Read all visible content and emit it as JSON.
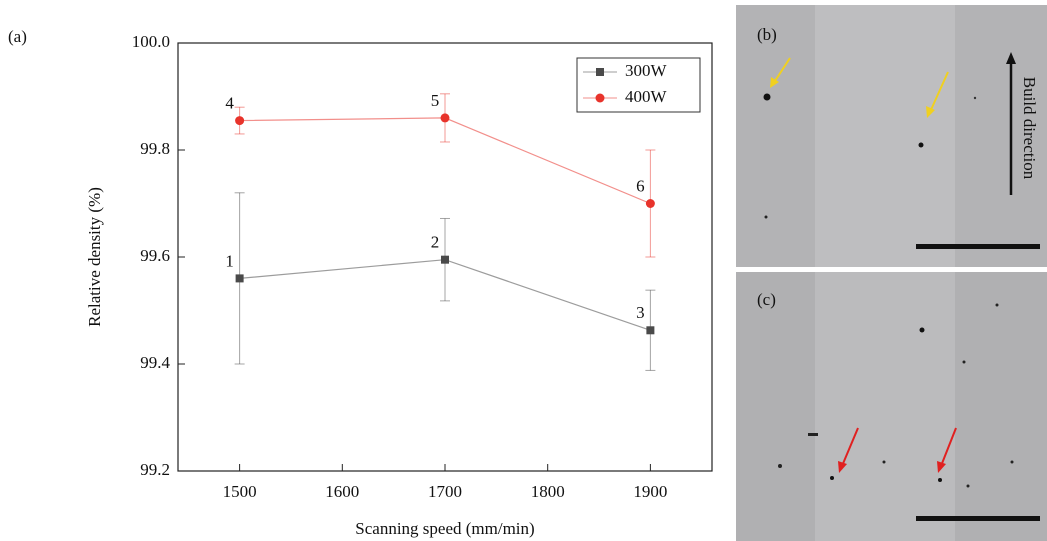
{
  "chart_data": {
    "type": "line",
    "panel_labels": [
      "(a)",
      "(b)",
      "(c)"
    ],
    "xlabel": "Scanning speed (mm/min)",
    "ylabel": "Relative density (%)",
    "annotation": "Build direction",
    "x": [
      1500,
      1700,
      1900
    ],
    "xlim": [
      1440,
      1960
    ],
    "xticks": [
      1500,
      1600,
      1700,
      1800,
      1900
    ],
    "ylim": [
      99.2,
      100
    ],
    "yticks": [
      99.2,
      99.4,
      99.6,
      99.8,
      {
        "value": 100,
        "label": "100.0"
      }
    ],
    "legend": "upper right",
    "series": [
      {
        "name": "300W",
        "color": "#4a4a4a",
        "marker": "square",
        "values": [
          99.56,
          99.595,
          99.463
        ],
        "errors": [
          0.16,
          0.077,
          0.075
        ],
        "point_labels": [
          "1",
          "2",
          "3"
        ]
      },
      {
        "name": "400W",
        "color": "#e8332b",
        "marker": "circle",
        "values": [
          99.855,
          99.86,
          99.7
        ],
        "errors": [
          0.025,
          0.045,
          0.1
        ],
        "point_labels": [
          "4",
          "5",
          "6"
        ]
      }
    ]
  }
}
